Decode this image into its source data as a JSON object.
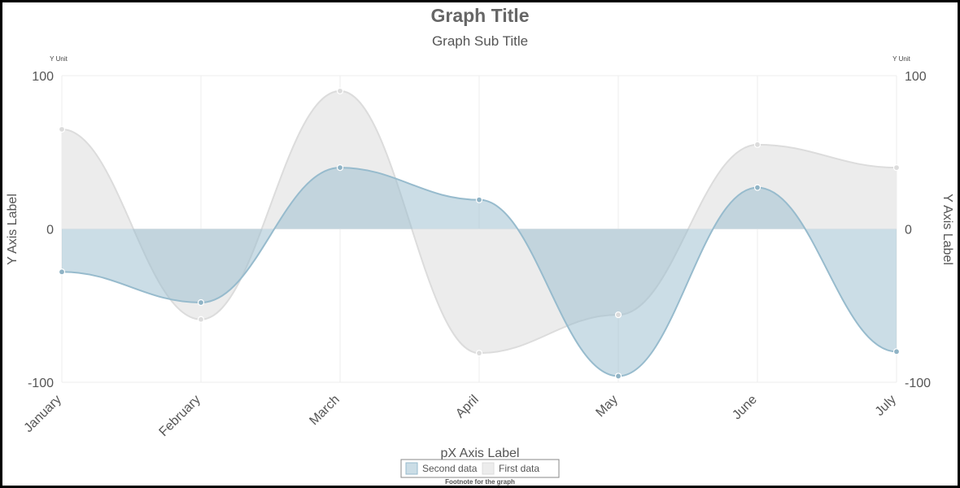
{
  "chart_data": {
    "type": "area",
    "title": "Graph Title",
    "subtitle": "Graph Sub Title",
    "xlabel": "pX Axis Label",
    "ylabel_left": "Y Axis Label",
    "ylabel_right": "Y Axis Label",
    "yunit_left": "Y Unit",
    "yunit_right": "Y Unit",
    "footnote": "Footnote for the graph",
    "categories": [
      "January",
      "February",
      "March",
      "April",
      "May",
      "June",
      "July"
    ],
    "ylim": [
      -100,
      100
    ],
    "yticks": [
      -100,
      0,
      100
    ],
    "grid": true,
    "legend_position": "bottom-center",
    "series": [
      {
        "name": "First data",
        "values": [
          65,
          -59,
          90,
          -81,
          -56,
          55,
          40
        ],
        "fill": "#ebebeb",
        "stroke": "#dcdcdc"
      },
      {
        "name": "Second data",
        "values": [
          -28,
          -48,
          40,
          19,
          -96,
          27,
          -80
        ],
        "fill": "#97bbcd",
        "stroke": "#97bbcd"
      }
    ],
    "legend_order": [
      "Second data",
      "First data"
    ]
  }
}
